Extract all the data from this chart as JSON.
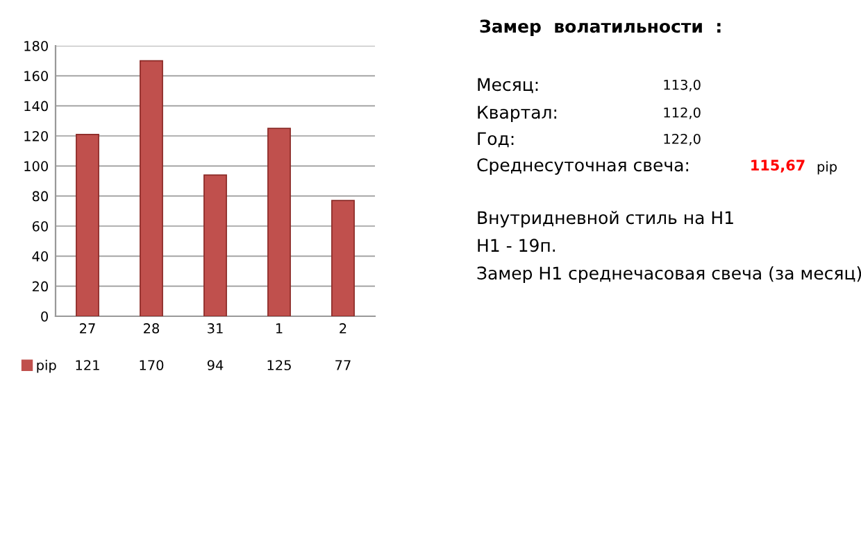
{
  "chart_data": {
    "type": "bar",
    "categories": [
      "27",
      "28",
      "31",
      "1",
      "2"
    ],
    "series": [
      {
        "name": "pip",
        "color": "#c0504d",
        "values": [
          121,
          170,
          94,
          125,
          77
        ]
      }
    ],
    "ylim": [
      0,
      180
    ],
    "yticks": [
      0,
      20,
      40,
      60,
      80,
      100,
      120,
      140,
      160,
      180
    ],
    "grid": "y",
    "data_labels": true,
    "legend": "bottom left",
    "annotations": [
      "Замер  волатильности  :",
      "Месяц:",
      "113,0",
      "Квартал:",
      "112,0",
      "Год:",
      "122,0",
      "Среднесуточная свеча:",
      "115,67",
      "pip",
      "Внутридневной стиль на H1",
      "H1 - 19п.",
      "Замер H1 среднечасовая свеча (за месяц)"
    ]
  }
}
